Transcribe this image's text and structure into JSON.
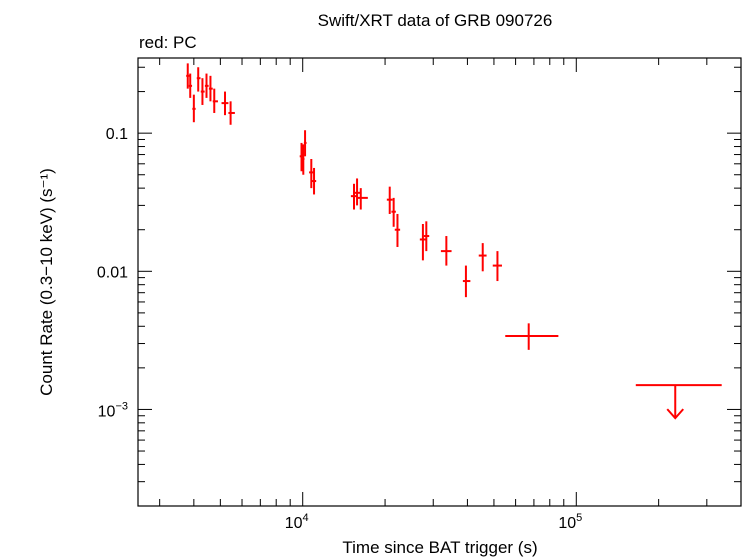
{
  "chart_data": {
    "type": "scatter",
    "title": "Swift/XRT data of GRB 090726",
    "subtitle": "red: PC",
    "xlabel": "Time since BAT trigger (s)",
    "ylabel": "Count Rate (0.3−10 keV) (s⁻¹)",
    "xscale": "log",
    "yscale": "log",
    "xlim": [
      2500,
      400000
    ],
    "ylim": [
      0.0002,
      0.35
    ],
    "x_ticks": [
      {
        "value": 10000,
        "base": "10",
        "exp": "4"
      },
      {
        "value": 100000,
        "base": "10",
        "exp": "5"
      }
    ],
    "y_ticks": [
      {
        "value": 0.1,
        "label": "0.1"
      },
      {
        "value": 0.01,
        "label": "0.01"
      },
      {
        "value": 0.001,
        "base": "10",
        "exp": "−3"
      }
    ],
    "grid": false,
    "series": [
      {
        "color": "#ff0000",
        "points": [
          {
            "x": 3800,
            "xlo": 3750,
            "xhi": 3870,
            "y": 0.26,
            "ylo": 0.21,
            "yhi": 0.32
          },
          {
            "x": 3880,
            "xlo": 3830,
            "xhi": 3940,
            "y": 0.22,
            "ylo": 0.18,
            "yhi": 0.27
          },
          {
            "x": 4000,
            "xlo": 3950,
            "xhi": 4060,
            "y": 0.15,
            "ylo": 0.12,
            "yhi": 0.19
          },
          {
            "x": 4150,
            "xlo": 4100,
            "xhi": 4230,
            "y": 0.25,
            "ylo": 0.2,
            "yhi": 0.3
          },
          {
            "x": 4300,
            "xlo": 4240,
            "xhi": 4380,
            "y": 0.2,
            "ylo": 0.16,
            "yhi": 0.25
          },
          {
            "x": 4450,
            "xlo": 4390,
            "xhi": 4530,
            "y": 0.22,
            "ylo": 0.18,
            "yhi": 0.27
          },
          {
            "x": 4600,
            "xlo": 4540,
            "xhi": 4690,
            "y": 0.21,
            "ylo": 0.17,
            "yhi": 0.26
          },
          {
            "x": 4750,
            "xlo": 4690,
            "xhi": 4900,
            "y": 0.17,
            "ylo": 0.14,
            "yhi": 0.21
          },
          {
            "x": 5200,
            "xlo": 5050,
            "xhi": 5350,
            "y": 0.165,
            "ylo": 0.135,
            "yhi": 0.2
          },
          {
            "x": 5450,
            "xlo": 5350,
            "xhi": 5650,
            "y": 0.14,
            "ylo": 0.115,
            "yhi": 0.17
          },
          {
            "x": 9900,
            "xlo": 9750,
            "xhi": 10050,
            "y": 0.068,
            "ylo": 0.053,
            "yhi": 0.085
          },
          {
            "x": 10050,
            "xlo": 9950,
            "xhi": 10150,
            "y": 0.065,
            "ylo": 0.05,
            "yhi": 0.083
          },
          {
            "x": 10200,
            "xlo": 10100,
            "xhi": 10330,
            "y": 0.085,
            "ylo": 0.068,
            "yhi": 0.105
          },
          {
            "x": 10750,
            "xlo": 10550,
            "xhi": 10950,
            "y": 0.052,
            "ylo": 0.04,
            "yhi": 0.065
          },
          {
            "x": 11000,
            "xlo": 10800,
            "xhi": 11200,
            "y": 0.045,
            "ylo": 0.036,
            "yhi": 0.056
          },
          {
            "x": 15400,
            "xlo": 15000,
            "xhi": 15800,
            "y": 0.035,
            "ylo": 0.028,
            "yhi": 0.043
          },
          {
            "x": 15800,
            "xlo": 15400,
            "xhi": 16200,
            "y": 0.037,
            "ylo": 0.03,
            "yhi": 0.047
          },
          {
            "x": 16300,
            "xlo": 15900,
            "xhi": 17300,
            "y": 0.034,
            "ylo": 0.028,
            "yhi": 0.04
          },
          {
            "x": 20800,
            "xlo": 20300,
            "xhi": 21300,
            "y": 0.033,
            "ylo": 0.026,
            "yhi": 0.041
          },
          {
            "x": 21500,
            "xlo": 21100,
            "xhi": 21900,
            "y": 0.027,
            "ylo": 0.021,
            "yhi": 0.034
          },
          {
            "x": 22200,
            "xlo": 21700,
            "xhi": 22700,
            "y": 0.02,
            "ylo": 0.015,
            "yhi": 0.026
          },
          {
            "x": 27500,
            "xlo": 26800,
            "xhi": 28200,
            "y": 0.017,
            "ylo": 0.012,
            "yhi": 0.022
          },
          {
            "x": 28300,
            "xlo": 27700,
            "xhi": 29000,
            "y": 0.018,
            "ylo": 0.014,
            "yhi": 0.023
          },
          {
            "x": 33500,
            "xlo": 32000,
            "xhi": 35000,
            "y": 0.014,
            "ylo": 0.011,
            "yhi": 0.018
          },
          {
            "x": 39500,
            "xlo": 38500,
            "xhi": 41000,
            "y": 0.0085,
            "ylo": 0.0065,
            "yhi": 0.011
          },
          {
            "x": 45500,
            "xlo": 44000,
            "xhi": 47000,
            "y": 0.013,
            "ylo": 0.01,
            "yhi": 0.016
          },
          {
            "x": 51500,
            "xlo": 49500,
            "xhi": 53500,
            "y": 0.011,
            "ylo": 0.0085,
            "yhi": 0.014
          },
          {
            "x": 67000,
            "xlo": 55000,
            "xhi": 86000,
            "y": 0.0034,
            "ylo": 0.0027,
            "yhi": 0.0042
          }
        ],
        "upper_limits": [
          {
            "x": 230000,
            "xlo": 165000,
            "xhi": 340000,
            "y": 0.0015
          }
        ]
      }
    ]
  }
}
